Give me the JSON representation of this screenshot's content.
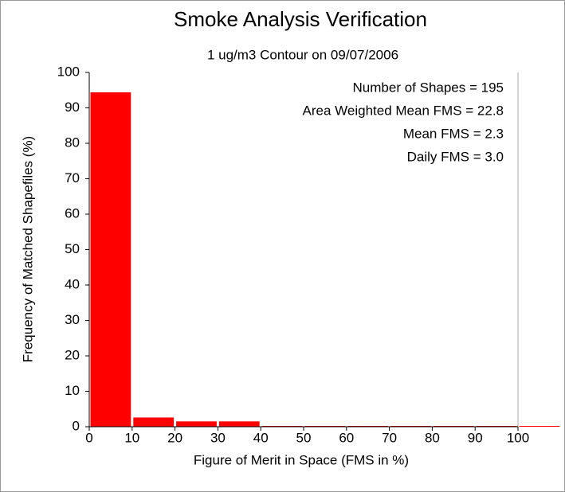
{
  "chart_data": {
    "type": "histogram",
    "title": "Smoke Analysis Verification",
    "subtitle": "1 ug/m3 Contour on 09/07/2006",
    "x_label": "Figure of Merit in Space (FMS in %)",
    "y_label": "Frequency of Matched Shapefiles (%)",
    "bins": [
      0,
      10,
      20,
      30,
      40,
      50,
      60,
      70,
      80,
      90,
      100,
      110
    ],
    "values": [
      94.4,
      2.6,
      1.5,
      1.5,
      0,
      0,
      0,
      0,
      0,
      0,
      0
    ],
    "color": "#ff0000",
    "xlim": [
      0,
      100
    ],
    "xticks": [
      0,
      10,
      20,
      30,
      40,
      50,
      60,
      70,
      80,
      90,
      100
    ],
    "ylim": [
      0,
      100
    ],
    "yticks": [
      0,
      10,
      20,
      30,
      40,
      50,
      60,
      70,
      80,
      90,
      100
    ],
    "annotations": [
      "Number of Shapes = 195",
      "Area Weighted Mean FMS = 22.8",
      "Mean FMS = 2.3",
      "Daily FMS = 3.0"
    ]
  }
}
